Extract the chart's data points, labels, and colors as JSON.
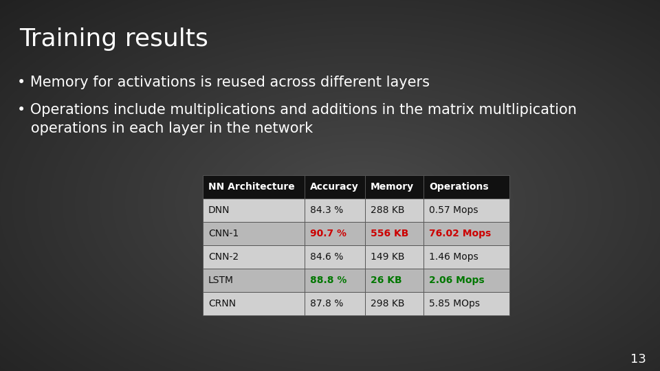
{
  "title": "Training results",
  "bullet1": "Memory for activations is reused across different layers",
  "bullet2a": "Operations include multiplications and additions in the matrix multlipication",
  "bullet2b": "   operations in each layer in the network",
  "bg_color": "#3a3a3a",
  "title_color": "#ffffff",
  "text_color": "#ffffff",
  "page_number": "13",
  "table": {
    "headers": [
      "NN Architecture",
      "Accuracy",
      "Memory",
      "Operations"
    ],
    "header_bg": "#111111",
    "header_fg": "#ffffff",
    "rows": [
      {
        "arch": "DNN",
        "acc": "84.3 %",
        "mem": "288 KB",
        "ops": "0.57 Mops",
        "color": "normal"
      },
      {
        "arch": "CNN-1",
        "acc": "90.7 %",
        "mem": "556 KB",
        "ops": "76.02 Mops",
        "color": "red"
      },
      {
        "arch": "CNN-2",
        "acc": "84.6 %",
        "mem": "149 KB",
        "ops": "1.46 Mops",
        "color": "normal"
      },
      {
        "arch": "LSTM",
        "acc": "88.8 %",
        "mem": "26 KB",
        "ops": "2.06 Mops",
        "color": "green"
      },
      {
        "arch": "CRNN",
        "acc": "87.8 %",
        "mem": "298 KB",
        "ops": "5.85 MOps",
        "color": "normal"
      }
    ],
    "row_bg_light": "#d0d0d0",
    "row_bg_dark": "#b8b8b8",
    "row_fg_normal": "#111111",
    "highlight_red": "#cc0000",
    "highlight_green": "#007700"
  }
}
